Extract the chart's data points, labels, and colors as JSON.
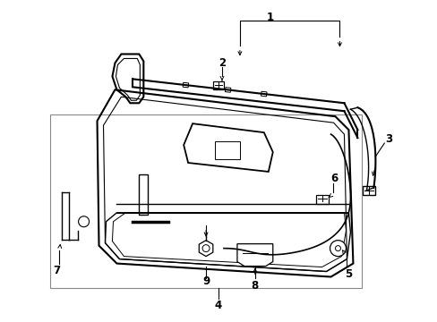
{
  "background_color": "#ffffff",
  "line_color": "#000000",
  "fig_width": 4.89,
  "fig_height": 3.6,
  "dpi": 100,
  "label_fontsize": 8.5
}
